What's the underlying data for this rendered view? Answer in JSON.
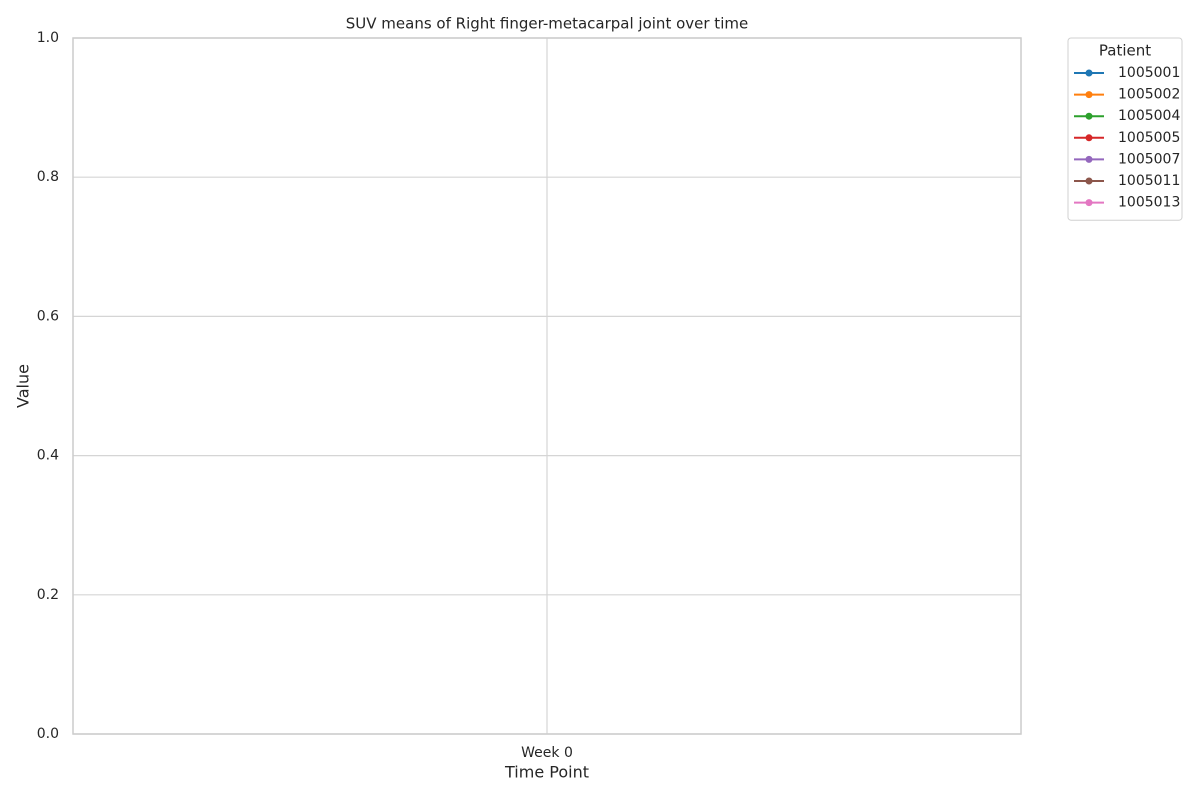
{
  "chart_data": {
    "type": "line",
    "title": "SUV means of Right finger-metacarpal joint over time",
    "xlabel": "Time Point",
    "ylabel": "Value",
    "categories": [
      "Week 0"
    ],
    "series": [
      {
        "name": "1005001",
        "color": "#1f77b4",
        "values": [
          null
        ]
      },
      {
        "name": "1005002",
        "color": "#ff7f0e",
        "values": [
          null
        ]
      },
      {
        "name": "1005004",
        "color": "#2ca02c",
        "values": [
          null
        ]
      },
      {
        "name": "1005005",
        "color": "#d62728",
        "values": [
          null
        ]
      },
      {
        "name": "1005007",
        "color": "#9467bd",
        "values": [
          null
        ]
      },
      {
        "name": "1005011",
        "color": "#8c564b",
        "values": [
          null
        ]
      },
      {
        "name": "1005013",
        "color": "#e377c2",
        "values": [
          null
        ]
      }
    ],
    "legend_title": "Patient",
    "legend": "right",
    "ylim": [
      0,
      1
    ],
    "yticks": [
      {
        "value": 0,
        "label": "0.0"
      },
      0.2,
      0.4,
      0.6,
      0.8,
      {
        "value": 1,
        "label": "1.0"
      }
    ],
    "grid": true
  }
}
